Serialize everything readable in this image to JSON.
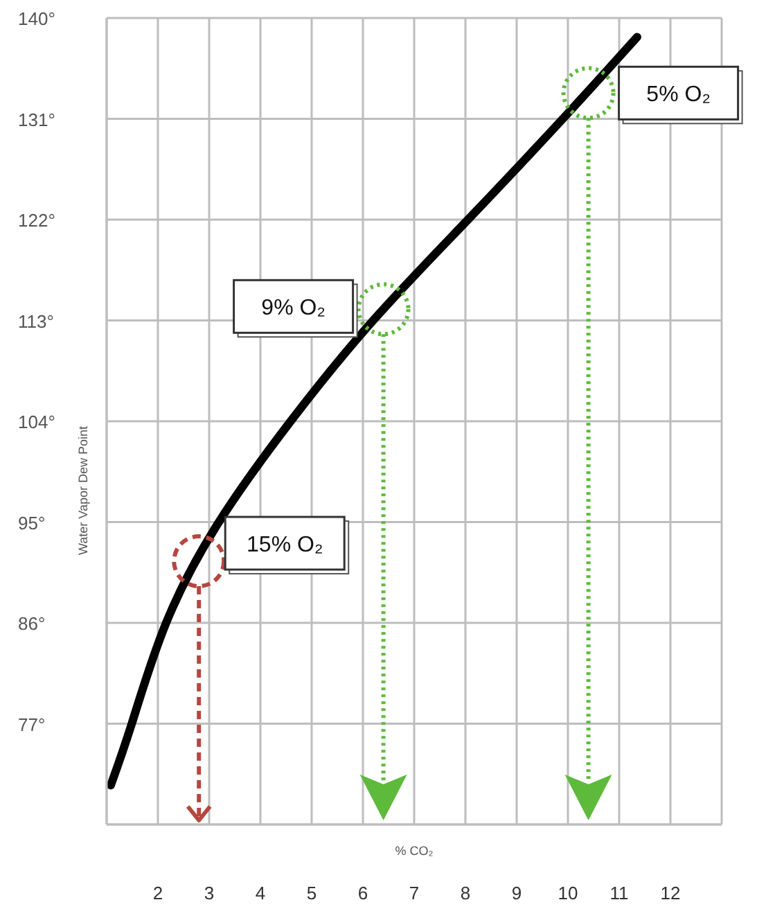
{
  "chart_data": {
    "type": "line",
    "xlabel": "% CO₂",
    "ylabel": "Water Vapor Dew Point",
    "xlim": [
      1,
      13
    ],
    "xticks": [
      {
        "value": 1,
        "label": null
      },
      2,
      3,
      4,
      5,
      6,
      7,
      8,
      9,
      10,
      11,
      12,
      {
        "value": 13,
        "label": null
      }
    ],
    "ylim": [
      68,
      140
    ],
    "yticks": [
      {
        "value": 68,
        "label": null
      },
      {
        "value": 77,
        "label": "77°"
      },
      {
        "value": 86,
        "label": "86°"
      },
      {
        "value": 95,
        "label": "95°"
      },
      {
        "value": 104,
        "label": "104°"
      },
      {
        "value": 113,
        "label": "113°"
      },
      {
        "value": 122,
        "label": "122°"
      },
      {
        "value": 131,
        "label": "131°"
      },
      {
        "value": 140,
        "label": "140°"
      }
    ],
    "grid": true,
    "series": [
      {
        "color": "#000000",
        "x": [
          1.08,
          1.49,
          2.16,
          3.19,
          4.59,
          6.2,
          8.05,
          9.9,
          11.35
        ],
        "values": [
          71.5,
          77,
          86,
          95,
          104,
          113,
          122,
          131,
          138.3
        ]
      },
      {
        "type": "scatter",
        "color": "#b5473f",
        "marker": "circle",
        "line_style": "dashed",
        "x": [
          2.8
        ],
        "values": [
          91.5
        ]
      },
      {
        "type": "scatter",
        "color": "#5dba3b",
        "marker": "circle",
        "line_style": "dotted",
        "x": [
          6.4,
          10.4
        ],
        "values": [
          114,
          133.3
        ]
      }
    ],
    "annotations": [
      {
        "text": "15% O₂",
        "x": 2.8,
        "y": 91.5
      },
      {
        "text": "9% O₂",
        "x": 6.4,
        "y": 114
      },
      {
        "text": "5% O₂",
        "x": 10.4,
        "y": 133.3
      }
    ]
  }
}
